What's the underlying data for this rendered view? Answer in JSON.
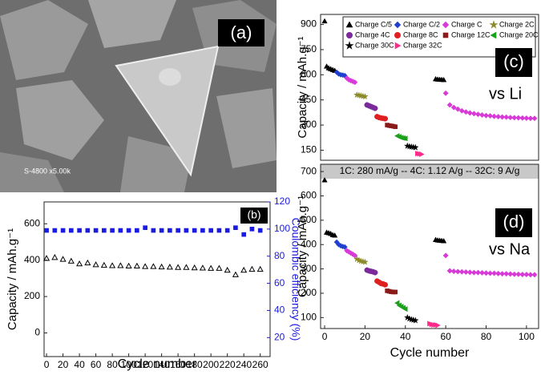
{
  "image": {
    "label": "(a)",
    "caption": "S-4800 x5.00k"
  },
  "note": "1C: 280 mA/g -- 4C: 1.12 A/g -- 32C: 9 A/g",
  "chart_data": [
    {
      "type": "scatter",
      "panel_label": "(b)",
      "xlabel": "Cycle number",
      "ylabel": "Capacity / mAh.g⁻¹",
      "y2label": "Coulombic efficiency (%)",
      "xlim": [
        -3,
        272
      ],
      "xticks": [
        0,
        20,
        40,
        60,
        80,
        100,
        120,
        140,
        160,
        180,
        200,
        220,
        240,
        260
      ],
      "ylim": [
        -130,
        720
      ],
      "yticks": [
        0,
        200,
        400,
        600
      ],
      "y2lim": [
        6,
        120
      ],
      "y2ticks": [
        20,
        40,
        60,
        80,
        100,
        120
      ],
      "y2color": "#1a1ae0",
      "legend": false,
      "series": [
        {
          "color": "#000000",
          "marker": "triangle",
          "hollow": true,
          "axis": "y",
          "x": [
            0,
            10,
            20,
            30,
            40,
            50,
            60,
            70,
            80,
            90,
            100,
            110,
            120,
            130,
            140,
            150,
            160,
            170,
            180,
            190,
            200,
            210,
            220,
            230,
            240,
            250,
            260
          ],
          "values": [
            410,
            415,
            405,
            395,
            380,
            385,
            375,
            372,
            370,
            370,
            368,
            368,
            365,
            365,
            363,
            362,
            360,
            360,
            358,
            357,
            355,
            355,
            345,
            320,
            345,
            350,
            350
          ]
        },
        {
          "color": "#1a1ae0",
          "marker": "square",
          "hollow": false,
          "axis": "y2",
          "x": [
            0,
            10,
            20,
            30,
            40,
            50,
            60,
            70,
            80,
            90,
            100,
            110,
            120,
            130,
            140,
            150,
            160,
            170,
            180,
            190,
            200,
            210,
            220,
            230,
            240,
            250,
            260
          ],
          "values": [
            99,
            99,
            99,
            99,
            99,
            99,
            99,
            99,
            99,
            99,
            99,
            99,
            101,
            99,
            99,
            99,
            99,
            99,
            99,
            99,
            99,
            99,
            99,
            101,
            96,
            100,
            99
          ]
        }
      ]
    },
    {
      "type": "scatter",
      "panel_label": "(c)",
      "annotation": "vs Li",
      "ylabel": "Capacity  / mAh.g⁻¹",
      "xlim": [
        -2,
        106
      ],
      "ylim": [
        90,
        960
      ],
      "yticks": [
        150,
        300,
        450,
        600,
        750,
        900
      ],
      "legend": true,
      "series": [
        {
          "name": "Charge C/5",
          "color": "#000000",
          "marker": "triangle",
          "x": [
            0,
            1,
            2,
            3,
            4,
            5,
            55,
            56,
            57,
            58,
            59
          ],
          "values": [
            920,
            650,
            640,
            635,
            630,
            625,
            575,
            573,
            572,
            571,
            570
          ]
        },
        {
          "name": "Charge C/2",
          "color": "#1f3fd0",
          "marker": "diamond",
          "x": [
            6,
            7,
            8,
            9,
            10
          ],
          "values": [
            615,
            605,
            600,
            598,
            595
          ]
        },
        {
          "name": "Charge C",
          "color": "#d83ad8",
          "marker": "diamond",
          "x": [
            11,
            12,
            13,
            14,
            15,
            60,
            62,
            64,
            66,
            68,
            70,
            72,
            74,
            76,
            78,
            80,
            82,
            84,
            86,
            88,
            90,
            92,
            94,
            96,
            98,
            100,
            102,
            104
          ],
          "values": [
            580,
            570,
            565,
            560,
            555,
            490,
            420,
            405,
            395,
            385,
            378,
            372,
            368,
            364,
            360,
            357,
            355,
            352,
            350,
            348,
            347,
            345,
            344,
            343,
            342,
            341,
            340,
            340
          ]
        },
        {
          "name": "Charge 2C",
          "color": "#8a8a2a",
          "marker": "star",
          "x": [
            16,
            17,
            18,
            19,
            20
          ],
          "values": [
            480,
            478,
            475,
            472,
            470
          ]
        },
        {
          "name": "Charge 4C",
          "color": "#7a2a9a",
          "marker": "circle",
          "x": [
            21,
            22,
            23,
            24,
            25
          ],
          "values": [
            420,
            415,
            410,
            405,
            400
          ]
        },
        {
          "name": "Charge 8C",
          "color": "#e02020",
          "marker": "circle",
          "x": [
            26,
            27,
            28,
            29,
            30
          ],
          "values": [
            350,
            345,
            342,
            340,
            338
          ]
        },
        {
          "name": "Charge 12C",
          "color": "#8b1a1a",
          "marker": "square",
          "x": [
            31,
            32,
            33,
            34,
            35
          ],
          "values": [
            300,
            297,
            295,
            293,
            290
          ]
        },
        {
          "name": "Charge 20C",
          "color": "#1aa01a",
          "marker": "tri-left",
          "x": [
            36,
            37,
            38,
            39,
            40
          ],
          "values": [
            235,
            230,
            225,
            222,
            220
          ]
        },
        {
          "name": "Charge 30C",
          "color": "#000000",
          "marker": "star",
          "x": [
            41,
            42,
            43,
            44,
            45
          ],
          "values": [
            175,
            172,
            170,
            168,
            166
          ]
        },
        {
          "name": "Charge 32C",
          "color": "#ff2a8a",
          "marker": "tri-right",
          "x": [
            46,
            47,
            48
          ],
          "values": [
            130,
            128,
            126
          ]
        }
      ]
    },
    {
      "type": "scatter",
      "panel_label": "(d)",
      "annotation": "vs Na",
      "xlabel": "Cycle number",
      "ylabel": "Capacity  / mAh.g⁻¹",
      "xlim": [
        -2,
        106
      ],
      "xticks": [
        0,
        20,
        40,
        60,
        80,
        100
      ],
      "ylim": [
        55,
        730
      ],
      "yticks": [
        100,
        200,
        300,
        400,
        500,
        600,
        700
      ],
      "legend": false,
      "series": [
        {
          "name": "Charge C/5",
          "color": "#000000",
          "marker": "triangle",
          "x": [
            0,
            1,
            2,
            3,
            4,
            5,
            55,
            56,
            57,
            58,
            59
          ],
          "values": [
            665,
            450,
            448,
            445,
            440,
            438,
            420,
            418,
            417,
            416,
            415
          ]
        },
        {
          "name": "Charge C/2",
          "color": "#1f3fd0",
          "marker": "diamond",
          "x": [
            6,
            7,
            8,
            9,
            10
          ],
          "values": [
            410,
            400,
            395,
            392,
            390
          ]
        },
        {
          "name": "Charge C",
          "color": "#d83ad8",
          "marker": "diamond",
          "x": [
            11,
            12,
            13,
            14,
            15,
            60,
            62,
            64,
            66,
            68,
            70,
            72,
            74,
            76,
            78,
            80,
            82,
            84,
            86,
            88,
            90,
            92,
            94,
            96,
            98,
            100,
            102,
            104
          ],
          "values": [
            375,
            370,
            365,
            360,
            355,
            355,
            292,
            290,
            289,
            288,
            287,
            286,
            285,
            285,
            284,
            283,
            282,
            282,
            281,
            280,
            280,
            279,
            278,
            278,
            277,
            277,
            276,
            276
          ]
        },
        {
          "name": "Charge 2C",
          "color": "#8a8a2a",
          "marker": "star",
          "x": [
            16,
            17,
            18,
            19,
            20
          ],
          "values": [
            340,
            335,
            332,
            330,
            328
          ]
        },
        {
          "name": "Charge 4C",
          "color": "#7a2a9a",
          "marker": "circle",
          "x": [
            21,
            22,
            23,
            24,
            25
          ],
          "values": [
            295,
            292,
            290,
            288,
            285
          ]
        },
        {
          "name": "Charge 8C",
          "color": "#e02020",
          "marker": "circle",
          "x": [
            26,
            27,
            28,
            29,
            30
          ],
          "values": [
            250,
            245,
            240,
            238,
            235
          ]
        },
        {
          "name": "Charge 12C",
          "color": "#8b1a1a",
          "marker": "square",
          "x": [
            31,
            32,
            33,
            34,
            35
          ],
          "values": [
            210,
            208,
            206,
            205,
            205
          ]
        },
        {
          "name": "Charge 20C",
          "color": "#1aa01a",
          "marker": "tri-left",
          "x": [
            36,
            37,
            38,
            39,
            40
          ],
          "values": [
            160,
            150,
            145,
            140,
            135
          ]
        },
        {
          "name": "Charge 30C",
          "color": "#000000",
          "marker": "star",
          "x": [
            41,
            42,
            43,
            44,
            45
          ],
          "values": [
            100,
            95,
            92,
            90,
            88
          ]
        },
        {
          "name": "Charge 32C",
          "color": "#ff2a8a",
          "marker": "tri-right",
          "x": [
            52,
            53,
            54,
            55,
            56
          ],
          "values": [
            75,
            72,
            70,
            70,
            68
          ]
        }
      ]
    }
  ]
}
